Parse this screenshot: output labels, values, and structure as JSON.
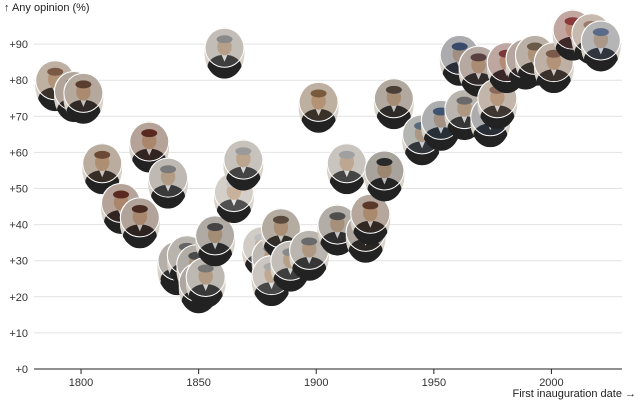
{
  "chart_data": {
    "type": "scatter",
    "title": "",
    "ylabel": "↑ Any opinion (%)",
    "xlabel": "First inauguration date →",
    "xlim": [
      1780,
      2030
    ],
    "ylim": [
      0,
      100
    ],
    "x_ticks": [
      1800,
      1850,
      1900,
      1950,
      2000
    ],
    "x_tick_labels": [
      "1800",
      "1850",
      "1900",
      "1950",
      "2000"
    ],
    "y_ticks": [
      0,
      10,
      20,
      30,
      40,
      50,
      60,
      70,
      80,
      90
    ],
    "y_tick_labels": [
      "+0",
      "+10",
      "+20",
      "+30",
      "+40",
      "+50",
      "+60",
      "+70",
      "+80",
      "+90"
    ],
    "grid": true,
    "marker": "circular president portrait",
    "colors": {
      "grid": "#e2e2e2",
      "axis": "#222222",
      "text": "#333333"
    },
    "points": [
      {
        "x": 1789,
        "y": 80,
        "shade": "#7a5a45"
      },
      {
        "x": 1797,
        "y": 77,
        "shade": "#4a3426"
      },
      {
        "x": 1801,
        "y": 76.5,
        "shade": "#5a3e2e"
      },
      {
        "x": 1809,
        "y": 57,
        "shade": "#6b4a35"
      },
      {
        "x": 1817,
        "y": 46,
        "shade": "#5b2a22"
      },
      {
        "x": 1825,
        "y": 42,
        "shade": "#4a2c22"
      },
      {
        "x": 1829,
        "y": 63,
        "shade": "#5a2a20"
      },
      {
        "x": 1837,
        "y": 53,
        "shade": "#7a7a7a"
      },
      {
        "x": 1841,
        "y": 29,
        "shade": "#3a3a3a"
      },
      {
        "x": 1841,
        "y": 30,
        "shade": "#555555"
      },
      {
        "x": 1845,
        "y": 31.5,
        "shade": "#666666"
      },
      {
        "x": 1849,
        "y": 29,
        "shade": "#4a4a4a"
      },
      {
        "x": 1850,
        "y": 24,
        "shade": "#3a3a3a"
      },
      {
        "x": 1853,
        "y": 25.5,
        "shade": "#777777"
      },
      {
        "x": 1857,
        "y": 37,
        "shade": "#444444"
      },
      {
        "x": 1861,
        "y": 89,
        "shade": "#8a8a8a"
      },
      {
        "x": 1865,
        "y": 49,
        "shade": "#c8c8c8"
      },
      {
        "x": 1869,
        "y": 58,
        "shade": "#9a9a9a"
      },
      {
        "x": 1877,
        "y": 34,
        "shade": "#bdbdbd"
      },
      {
        "x": 1881,
        "y": 31,
        "shade": "#777777"
      },
      {
        "x": 1881,
        "y": 26,
        "shade": "#aaaaaa"
      },
      {
        "x": 1885,
        "y": 39,
        "shade": "#5a4a3e"
      },
      {
        "x": 1889,
        "y": 30,
        "shade": "#888888"
      },
      {
        "x": 1897,
        "y": 33,
        "shade": "#6a6a6a"
      },
      {
        "x": 1901,
        "y": 74,
        "shade": "#7a5a3c"
      },
      {
        "x": 1909,
        "y": 40,
        "shade": "#4e4e4e"
      },
      {
        "x": 1913,
        "y": 57,
        "shade": "#a0a0a0"
      },
      {
        "x": 1921,
        "y": 38,
        "shade": "#3e3228"
      },
      {
        "x": 1923,
        "y": 43,
        "shade": "#5a3a2a"
      },
      {
        "x": 1929,
        "y": 55,
        "shade": "#2a2a2a"
      },
      {
        "x": 1933,
        "y": 75,
        "shade": "#4a4038"
      },
      {
        "x": 1945,
        "y": 65,
        "shade": "#5a6a7a"
      },
      {
        "x": 1953,
        "y": 69,
        "shade": "#3d5470"
      },
      {
        "x": 1961,
        "y": 87,
        "shade": "#3a4a6a"
      },
      {
        "x": 1963,
        "y": 72,
        "shade": "#6a6a6a"
      },
      {
        "x": 1969,
        "y": 84,
        "shade": "#5a4040"
      },
      {
        "x": 1974,
        "y": 70,
        "shade": "#3a4a6a"
      },
      {
        "x": 1977,
        "y": 75,
        "shade": "#8a6a5a"
      },
      {
        "x": 1981,
        "y": 85,
        "shade": "#7a3a3a"
      },
      {
        "x": 1989,
        "y": 86,
        "shade": "#5a3a3a"
      },
      {
        "x": 1993,
        "y": 87,
        "shade": "#6a5a4a"
      },
      {
        "x": 2001,
        "y": 85,
        "shade": "#7a5a4a"
      },
      {
        "x": 2009,
        "y": 94,
        "shade": "#8a3a3a"
      },
      {
        "x": 2017,
        "y": 93,
        "shade": "#9a7a6a"
      },
      {
        "x": 2021,
        "y": 91,
        "shade": "#5a6a8a"
      }
    ]
  }
}
